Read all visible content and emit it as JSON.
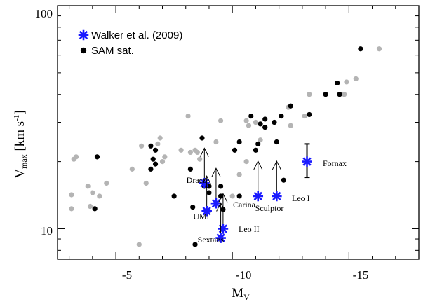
{
  "chart_data": {
    "type": "scatter",
    "x_axis": {
      "label_main": "M",
      "label_sub": "V",
      "range": [
        -2.5,
        -18
      ],
      "ticks": [
        -5,
        -10,
        -15
      ],
      "tick_labels": [
        "-5",
        "-10",
        "-15"
      ]
    },
    "y_axis": {
      "label_main": "V",
      "label_sub": "max",
      "label_unit_main": " [km s",
      "label_unit_sup": "-1",
      "label_unit_end": "]",
      "scale": "log",
      "range": [
        7.3,
        100
      ],
      "ticks": [
        10,
        100
      ],
      "tick_labels": [
        "10",
        "100"
      ]
    },
    "legend": {
      "placement": "top-left",
      "entries": [
        {
          "name": "Walker et al. (2009)",
          "marker": "asterisk",
          "color": "#1a1aff"
        },
        {
          "name": "SAM sat.",
          "marker": "circle",
          "color": "#000000"
        }
      ]
    },
    "series": [
      {
        "name": "Walker et al. (2009)",
        "color": "#1a1aff",
        "marker": "asterisk",
        "points": [
          {
            "label": "Draco",
            "x": -8.8,
            "y": 16.0,
            "upper_limit": true
          },
          {
            "label": "UMi",
            "x": -8.9,
            "y": 12.0,
            "upper_limit": true
          },
          {
            "label": "Carina",
            "x": -9.3,
            "y": 13.0,
            "upper_limit": true
          },
          {
            "label": "Leo II",
            "x": -9.6,
            "y": 10.0,
            "upper_limit": true
          },
          {
            "label": "Sextans",
            "x": -9.5,
            "y": 9.1,
            "upper_limit": true
          },
          {
            "label": "Sculptor",
            "x": -11.1,
            "y": 14.0,
            "upper_limit": true
          },
          {
            "label": "Leo I",
            "x": -11.9,
            "y": 14.0,
            "upper_limit": true
          },
          {
            "label": "Fornax",
            "x": -13.2,
            "y": 20.0,
            "error_low": 17.0,
            "error_high": 24.0
          }
        ]
      },
      {
        "name": "SAM sat.",
        "color": "#000000",
        "marker": "circle",
        "points": [
          [
            -4.2,
            21
          ],
          [
            -4.1,
            12.3
          ],
          [
            -6.5,
            23.5
          ],
          [
            -6.7,
            22.5
          ],
          [
            -6.6,
            20.5
          ],
          [
            -6.7,
            19.5
          ],
          [
            -6.5,
            18.5
          ],
          [
            -7.5,
            14
          ],
          [
            -8.2,
            18.5
          ],
          [
            -8.7,
            25.5
          ],
          [
            -8.8,
            15.5
          ],
          [
            -9.0,
            15.5
          ],
          [
            -8.3,
            12.5
          ],
          [
            -8.4,
            8.5
          ],
          [
            -9.5,
            14
          ],
          [
            -9.5,
            15.5
          ],
          [
            -9.6,
            12.2
          ],
          [
            -10.3,
            14
          ],
          [
            -10.1,
            22.5
          ],
          [
            -10.3,
            24.5
          ],
          [
            -10.8,
            32
          ],
          [
            -11.1,
            24
          ],
          [
            -11.0,
            22.5
          ],
          [
            -11.2,
            29.5
          ],
          [
            -11.4,
            31
          ],
          [
            -11.4,
            28.5
          ],
          [
            -11.8,
            30
          ],
          [
            -11.9,
            24.5
          ],
          [
            -12.1,
            32
          ],
          [
            -12.5,
            35.5
          ],
          [
            -12.2,
            16.5
          ],
          [
            -13.3,
            32.5
          ],
          [
            -14.0,
            40
          ],
          [
            -14.5,
            45
          ],
          [
            -14.6,
            40
          ],
          [
            -15.5,
            64
          ],
          [
            -9.0,
            14.5
          ]
        ]
      },
      {
        "name": "",
        "color": "#b4b4b4",
        "marker": "circle",
        "points": [
          [
            -3.1,
            14.2
          ],
          [
            -3.2,
            20.5
          ],
          [
            -3.3,
            21
          ],
          [
            -3.1,
            12.3
          ],
          [
            -3.8,
            15.5
          ],
          [
            -3.9,
            12.6
          ],
          [
            -4.0,
            14.5
          ],
          [
            -4.3,
            14.0
          ],
          [
            -4.6,
            16.0
          ],
          [
            -5.7,
            18.5
          ],
          [
            -6.1,
            23.5
          ],
          [
            -6.3,
            16.0
          ],
          [
            -6.9,
            25.5
          ],
          [
            -6.8,
            24.0
          ],
          [
            -7.1,
            21.0
          ],
          [
            -7.8,
            22.5
          ],
          [
            -8.1,
            32.0
          ],
          [
            -8.4,
            22.5
          ],
          [
            -8.5,
            22.0
          ],
          [
            -8.6,
            20.5
          ],
          [
            -9.3,
            24.5
          ],
          [
            -9.5,
            30.5
          ],
          [
            -10.6,
            30.5
          ],
          [
            -10.7,
            29.0
          ],
          [
            -11.0,
            30.0
          ],
          [
            -11.2,
            25.0
          ],
          [
            -12.1,
            32.0
          ],
          [
            -12.4,
            35.0
          ],
          [
            -12.5,
            29.0
          ],
          [
            -13.1,
            32.0
          ],
          [
            -13.3,
            40.0
          ],
          [
            -14.8,
            40.0
          ],
          [
            -14.9,
            45.5
          ],
          [
            -15.3,
            47.0
          ],
          [
            -16.3,
            64.0
          ],
          [
            -6.0,
            8.5
          ],
          [
            -10.3,
            17.5
          ],
          [
            -10.6,
            20.0
          ],
          [
            -10.0,
            14.0
          ],
          [
            -9.0,
            12.0
          ],
          [
            -8.2,
            22.0
          ],
          [
            -7.0,
            20.0
          ]
        ]
      }
    ]
  }
}
